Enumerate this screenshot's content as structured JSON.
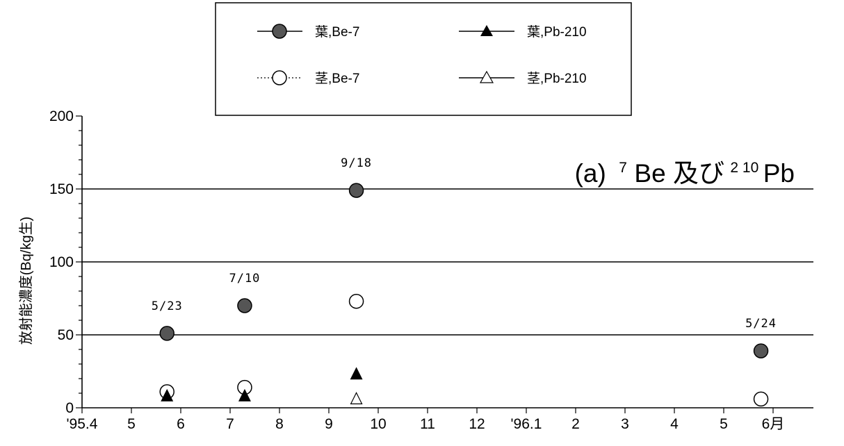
{
  "chart_data": {
    "type": "scatter",
    "title_parts": {
      "prefix": "(a)",
      "sup1": "7",
      "mid": "Be 及び",
      "sup2": "2 10",
      "suffix": "Pb"
    },
    "ylabel": "放射能濃度(Bq/kg生)",
    "xlabel": "",
    "ylim": [
      0,
      200
    ],
    "yticks": [
      0,
      50,
      100,
      150,
      200
    ],
    "grid_y": [
      50,
      100,
      150
    ],
    "x_unit": "months from '95.4",
    "xlim": [
      0,
      14.6
    ],
    "x_tick_labels": [
      "'95.4",
      "5",
      "6",
      "7",
      "8",
      "9",
      "10",
      "11",
      "12",
      "'96.1",
      "2",
      "3",
      "4",
      "5",
      "6月"
    ],
    "legend_position": "top-center",
    "series": [
      {
        "name": "葉,Be-7",
        "marker": "filled-circle",
        "line": "solid",
        "x": [
          "1995-05-23",
          "1995-07-10",
          "1995-09-18",
          "1996-05-24"
        ],
        "values": [
          51,
          70,
          149,
          39
        ]
      },
      {
        "name": "葉,Pb-210",
        "marker": "filled-triangle",
        "line": "solid",
        "x": [
          "1995-05-23",
          "1995-07-10",
          "1995-09-18"
        ],
        "values": [
          8,
          8,
          23
        ]
      },
      {
        "name": "茎,Be-7",
        "marker": "open-circle",
        "line": "dotted",
        "x": [
          "1995-05-23",
          "1995-07-10",
          "1995-09-18",
          "1996-05-24"
        ],
        "values": [
          11,
          14,
          73,
          6
        ]
      },
      {
        "name": "茎,Pb-210",
        "marker": "open-triangle",
        "line": "solid",
        "x": [
          "1995-09-18"
        ],
        "values": [
          6
        ]
      }
    ],
    "annotations": [
      "5/23",
      "7/10",
      "9/18",
      "5/24"
    ]
  }
}
